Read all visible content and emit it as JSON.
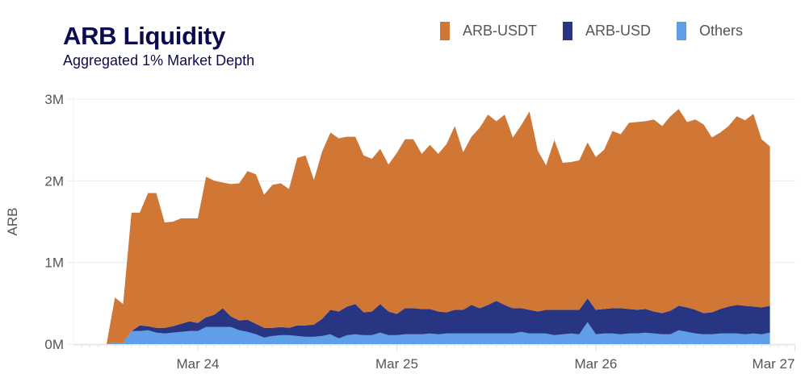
{
  "chart_data": {
    "type": "area",
    "stacked": true,
    "title": "ARB Liquidity",
    "subtitle": "Aggregated 1% Market Depth",
    "xlabel": "",
    "ylabel": "ARB",
    "y_unit": "millions of ARB",
    "ylim": [
      0,
      3
    ],
    "y_ticks": [
      0,
      1,
      2,
      3
    ],
    "y_tick_labels": [
      "0M",
      "1M",
      "2M",
      "3M"
    ],
    "x_tick_labels": [
      "Mar 24",
      "Mar 25",
      "Mar 26",
      "Mar 27"
    ],
    "x_tick_positions": [
      "Mar 24 00:00",
      "Mar 25 00:00",
      "Mar 26 00:00",
      "Mar 27 00:00"
    ],
    "x_range": [
      "Mar 23 13:00",
      "Mar 27 00:00"
    ],
    "grid": true,
    "legend_position": "top-right",
    "x": [
      "Mar 23 13:00",
      "Mar 23 14:00",
      "Mar 23 15:00",
      "Mar 23 16:00",
      "Mar 23 17:00",
      "Mar 23 18:00",
      "Mar 23 19:00",
      "Mar 23 20:00",
      "Mar 23 21:00",
      "Mar 23 22:00",
      "Mar 23 23:00",
      "Mar 24 00:00",
      "Mar 24 01:00",
      "Mar 24 02:00",
      "Mar 24 03:00",
      "Mar 24 04:00",
      "Mar 24 05:00",
      "Mar 24 06:00",
      "Mar 24 07:00",
      "Mar 24 08:00",
      "Mar 24 09:00",
      "Mar 24 10:00",
      "Mar 24 11:00",
      "Mar 24 12:00",
      "Mar 24 13:00",
      "Mar 24 14:00",
      "Mar 24 15:00",
      "Mar 24 16:00",
      "Mar 24 17:00",
      "Mar 24 18:00",
      "Mar 24 19:00",
      "Mar 24 20:00",
      "Mar 24 21:00",
      "Mar 24 22:00",
      "Mar 24 23:00",
      "Mar 25 00:00",
      "Mar 25 01:00",
      "Mar 25 02:00",
      "Mar 25 03:00",
      "Mar 25 04:00",
      "Mar 25 05:00",
      "Mar 25 06:00",
      "Mar 25 07:00",
      "Mar 25 08:00",
      "Mar 25 09:00",
      "Mar 25 10:00",
      "Mar 25 11:00",
      "Mar 25 12:00",
      "Mar 25 13:00",
      "Mar 25 14:00",
      "Mar 25 15:00",
      "Mar 25 16:00",
      "Mar 25 17:00",
      "Mar 25 18:00",
      "Mar 25 19:00",
      "Mar 25 20:00",
      "Mar 25 21:00",
      "Mar 25 22:00",
      "Mar 25 23:00",
      "Mar 26 00:00",
      "Mar 26 01:00",
      "Mar 26 02:00",
      "Mar 26 03:00",
      "Mar 26 04:00",
      "Mar 26 05:00",
      "Mar 26 06:00",
      "Mar 26 07:00",
      "Mar 26 08:00",
      "Mar 26 09:00",
      "Mar 26 10:00",
      "Mar 26 11:00",
      "Mar 26 12:00",
      "Mar 26 13:00",
      "Mar 26 14:00",
      "Mar 26 15:00",
      "Mar 26 16:00",
      "Mar 26 17:00",
      "Mar 26 18:00",
      "Mar 26 19:00",
      "Mar 26 20:00",
      "Mar 26 21:00"
    ],
    "series": [
      {
        "name": "Others",
        "color": "#5f9fe8",
        "values": [
          0,
          0.02,
          0.02,
          0.16,
          0.16,
          0.17,
          0.14,
          0.13,
          0.14,
          0.15,
          0.16,
          0.16,
          0.21,
          0.21,
          0.21,
          0.21,
          0.17,
          0.15,
          0.12,
          0.08,
          0.1,
          0.11,
          0.11,
          0.1,
          0.09,
          0.09,
          0.1,
          0.12,
          0.07,
          0.11,
          0.12,
          0.11,
          0.11,
          0.14,
          0.11,
          0.11,
          0.12,
          0.12,
          0.12,
          0.13,
          0.12,
          0.13,
          0.13,
          0.13,
          0.13,
          0.13,
          0.13,
          0.13,
          0.13,
          0.13,
          0.15,
          0.13,
          0.13,
          0.13,
          0.11,
          0.12,
          0.13,
          0.12,
          0.27,
          0.12,
          0.13,
          0.13,
          0.12,
          0.13,
          0.13,
          0.14,
          0.13,
          0.12,
          0.12,
          0.17,
          0.15,
          0.13,
          0.12,
          0.12,
          0.13,
          0.13,
          0.13,
          0.12,
          0.13,
          0.12,
          0.14
        ]
      },
      {
        "name": "ARB-USD",
        "color": "#283583",
        "values": [
          0,
          0,
          0,
          0,
          0.07,
          0.05,
          0.06,
          0.07,
          0.08,
          0.1,
          0.12,
          0.1,
          0.12,
          0.15,
          0.23,
          0.13,
          0.12,
          0.15,
          0.13,
          0.12,
          0.1,
          0.1,
          0.09,
          0.13,
          0.14,
          0.15,
          0.21,
          0.3,
          0.33,
          0.35,
          0.37,
          0.28,
          0.29,
          0.35,
          0.29,
          0.26,
          0.32,
          0.32,
          0.31,
          0.3,
          0.28,
          0.26,
          0.29,
          0.29,
          0.35,
          0.31,
          0.35,
          0.4,
          0.35,
          0.31,
          0.29,
          0.29,
          0.27,
          0.29,
          0.31,
          0.3,
          0.29,
          0.3,
          0.29,
          0.3,
          0.3,
          0.31,
          0.32,
          0.3,
          0.29,
          0.29,
          0.27,
          0.26,
          0.29,
          0.3,
          0.3,
          0.29,
          0.26,
          0.27,
          0.3,
          0.33,
          0.35,
          0.35,
          0.33,
          0.33,
          0.33
        ]
      },
      {
        "name": "ARB-USDT",
        "color": "#d07735",
        "values": [
          0,
          0.55,
          0.47,
          1.45,
          1.38,
          1.63,
          1.65,
          1.29,
          1.28,
          1.29,
          1.26,
          1.28,
          1.72,
          1.64,
          1.54,
          1.62,
          1.68,
          1.82,
          1.83,
          1.63,
          1.75,
          1.76,
          1.7,
          2.05,
          2.08,
          1.77,
          2.05,
          2.17,
          2.12,
          2.08,
          2.05,
          1.92,
          1.87,
          1.9,
          1.8,
          1.97,
          2.07,
          2.07,
          1.9,
          2.01,
          1.93,
          2.06,
          2.25,
          1.93,
          2.06,
          2.21,
          2.33,
          2.2,
          2.33,
          2.09,
          2.24,
          2.43,
          1.97,
          1.77,
          2.08,
          1.8,
          1.81,
          1.83,
          1.91,
          1.87,
          1.95,
          2.17,
          2.13,
          2.28,
          2.3,
          2.3,
          2.35,
          2.29,
          2.38,
          2.41,
          2.27,
          2.33,
          2.31,
          2.14,
          2.16,
          2.21,
          2.31,
          2.27,
          2.36,
          2.06,
          1.95
        ]
      }
    ]
  },
  "legend": [
    {
      "label": "ARB-USDT",
      "color": "#d07735"
    },
    {
      "label": "ARB-USD",
      "color": "#283583"
    },
    {
      "label": "Others",
      "color": "#5f9fe8"
    }
  ]
}
